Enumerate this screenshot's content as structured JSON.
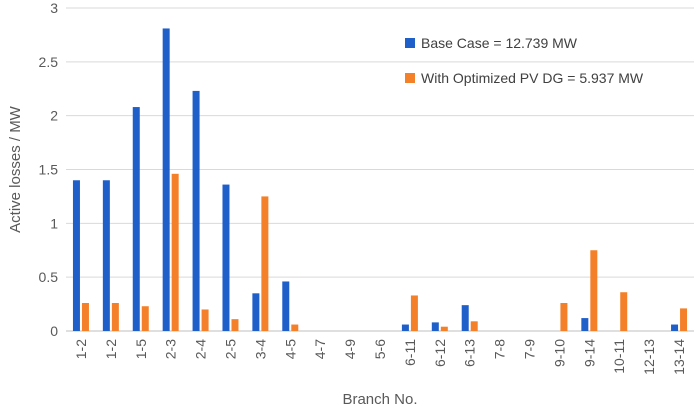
{
  "chart_data": {
    "type": "bar",
    "title": "",
    "xlabel": "Branch No.",
    "ylabel": "Active losses / MW",
    "ylim": [
      0,
      3
    ],
    "yticks": [
      0,
      0.5,
      1,
      1.5,
      2,
      2.5,
      3
    ],
    "grid": "horizontal",
    "legend_position": "top-right",
    "categories": [
      "1-2",
      "1-2",
      "1-5",
      "2-3",
      "2-4",
      "2-5",
      "3-4",
      "4-5",
      "4-7",
      "4-9",
      "5-6",
      "6-11",
      "6-12",
      "6-13",
      "7-8",
      "7-9",
      "9-10",
      "9-14",
      "10-11",
      "12-13",
      "13-14"
    ],
    "series": [
      {
        "name": "Base Case = 12.739 MW",
        "color": "#1f5fc9",
        "values": [
          1.4,
          1.4,
          2.08,
          2.81,
          2.23,
          1.36,
          0.35,
          0.46,
          0,
          0,
          0,
          0.06,
          0.08,
          0.24,
          0,
          0,
          0,
          0.12,
          0,
          0,
          0.06
        ]
      },
      {
        "name": "With Optimized PV DG = 5.937 MW",
        "color": "#f4802a",
        "values": [
          0.26,
          0.26,
          0.23,
          1.46,
          0.2,
          0.11,
          1.25,
          0.06,
          0,
          0,
          0,
          0.33,
          0.04,
          0.09,
          0,
          0,
          0.26,
          0.75,
          0.36,
          0,
          0.21
        ]
      }
    ]
  }
}
